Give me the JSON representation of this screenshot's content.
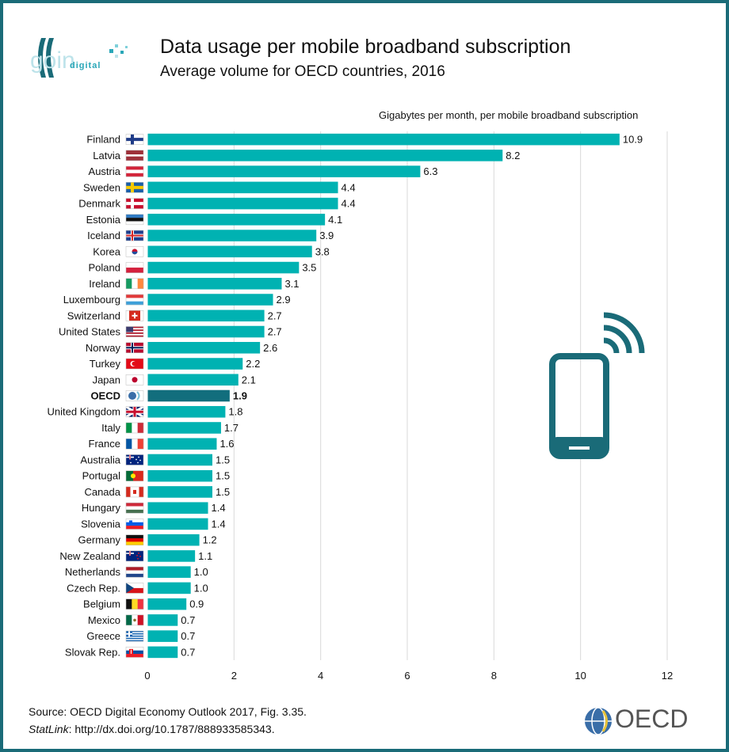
{
  "header": {
    "title": "Data usage per mobile broadband subscription",
    "subtitle": "Average volume for OECD countries, 2016",
    "logo_text": "digital"
  },
  "footer": {
    "source": "Source: OECD Digital Economy Outlook 2017, Fig. 3.35.",
    "statlink_label": "StatLink",
    "statlink_rest": ": http://dx.doi.org/10.1787/888933585343.",
    "oecd_brand": "OECD"
  },
  "colors": {
    "bar": "#00b2b2",
    "highlight": "#126e7d",
    "grid": "#d9d9d9",
    "frame": "#1a6b78",
    "phone": "#1a6b78"
  },
  "icons": {
    "phone": "mobile-phone-icon",
    "oecd_globe": "oecd-globe-icon",
    "going_digital": "going-digital-logo-icon"
  },
  "chart_data": {
    "type": "bar",
    "orientation": "horizontal",
    "title": "Data usage per mobile broadband subscription",
    "subtitle": "Average volume for OECD countries, 2016",
    "xlabel": "Gigabytes per month, per mobile broadband subscription",
    "ylabel": "",
    "xlim": [
      0,
      12
    ],
    "xticks": [
      0,
      2,
      4,
      6,
      8,
      10,
      12
    ],
    "grid": true,
    "highlight_category": "OECD",
    "categories": [
      "Finland",
      "Latvia",
      "Austria",
      "Sweden",
      "Denmark",
      "Estonia",
      "Iceland",
      "Korea",
      "Poland",
      "Ireland",
      "Luxembourg",
      "Switzerland",
      "United States",
      "Norway",
      "Turkey",
      "Japan",
      "OECD",
      "United Kingdom",
      "Italy",
      "France",
      "Australia",
      "Portugal",
      "Canada",
      "Hungary",
      "Slovenia",
      "Germany",
      "New Zealand",
      "Netherlands",
      "Czech Rep.",
      "Belgium",
      "Mexico",
      "Greece",
      "Slovak Rep."
    ],
    "values": [
      10.9,
      8.2,
      6.3,
      4.4,
      4.4,
      4.1,
      3.9,
      3.8,
      3.5,
      3.1,
      2.9,
      2.7,
      2.7,
      2.6,
      2.2,
      2.1,
      1.9,
      1.8,
      1.7,
      1.6,
      1.5,
      1.5,
      1.5,
      1.4,
      1.4,
      1.2,
      1.1,
      1.0,
      1.0,
      0.9,
      0.7,
      0.7,
      0.7
    ],
    "value_labels": [
      "10.9",
      "8.2",
      "6.3",
      "4.4",
      "4.4",
      "4.1",
      "3.9",
      "3.8",
      "3.5",
      "3.1",
      "2.9",
      "2.7",
      "2.7",
      "2.6",
      "2.2",
      "2.1",
      "1.9",
      "1.8",
      "1.7",
      "1.6",
      "1.5",
      "1.5",
      "1.5",
      "1.4",
      "1.4",
      "1.2",
      "1.1",
      "1.0",
      "1.0",
      "0.9",
      "0.7",
      "0.7",
      "0.7"
    ]
  }
}
